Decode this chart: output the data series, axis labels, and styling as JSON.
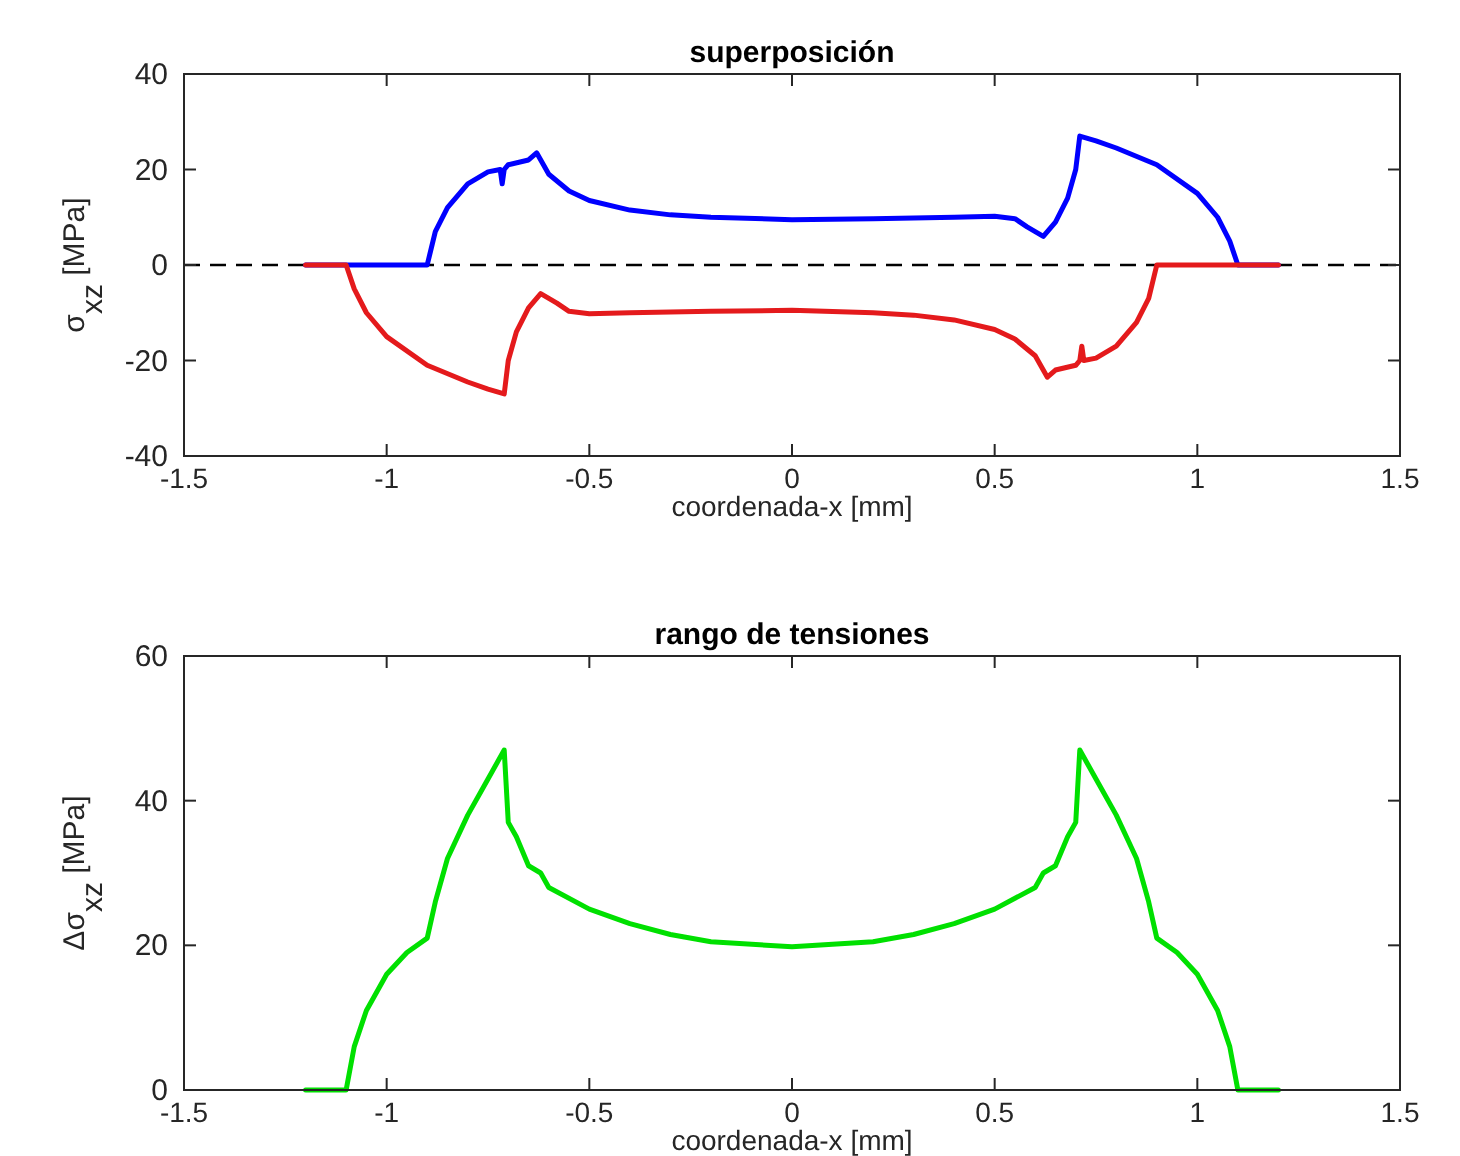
{
  "chart_data": [
    {
      "type": "line",
      "title": "superposición",
      "xlabel": "coordenada-x [mm]",
      "ylabel": "σ$_{xz}$ [MPa]",
      "xlim": [
        -1.5,
        1.5
      ],
      "xticks": [
        -1.5,
        -1,
        -0.5,
        0,
        0.5,
        1,
        1.5
      ],
      "ylim": [
        -40,
        40
      ],
      "yticks": [
        -40,
        -20,
        0,
        20,
        40
      ],
      "grid": false,
      "ref_lines": [
        {
          "axis": "y",
          "value": 0,
          "color": "#000000",
          "line_style": "dashed"
        }
      ],
      "series": [
        {
          "color": "#0000ff",
          "x": [
            -1.2,
            -1.1,
            -0.9,
            -0.88,
            -0.85,
            -0.8,
            -0.75,
            -0.72,
            -0.715,
            -0.71,
            -0.7,
            -0.65,
            -0.63,
            -0.6,
            -0.55,
            -0.5,
            -0.4,
            -0.3,
            -0.2,
            0,
            0.2,
            0.4,
            0.5,
            0.55,
            0.58,
            0.62,
            0.65,
            0.68,
            0.7,
            0.71,
            0.75,
            0.8,
            0.9,
            1.0,
            1.05,
            1.08,
            1.1,
            1.2
          ],
          "values": [
            0,
            0,
            0,
            7,
            12,
            17,
            19.5,
            20,
            17,
            20,
            21,
            22,
            23.5,
            19,
            15.5,
            13.5,
            11.5,
            10.5,
            10,
            9.5,
            9.7,
            10,
            10.2,
            9.7,
            8,
            6,
            9,
            14,
            20,
            27,
            26,
            24.5,
            21,
            15,
            10,
            5,
            0,
            0
          ]
        },
        {
          "color": "#e41a1c",
          "x": [
            -1.2,
            -1.1,
            -1.08,
            -1.05,
            -1.0,
            -0.9,
            -0.8,
            -0.75,
            -0.71,
            -0.7,
            -0.68,
            -0.65,
            -0.62,
            -0.58,
            -0.55,
            -0.5,
            -0.4,
            -0.2,
            0,
            0.2,
            0.3,
            0.4,
            0.5,
            0.55,
            0.6,
            0.63,
            0.65,
            0.7,
            0.71,
            0.715,
            0.72,
            0.75,
            0.8,
            0.85,
            0.88,
            0.9,
            1.1,
            1.2
          ],
          "values": [
            0,
            0,
            -5,
            -10,
            -15,
            -21,
            -24.5,
            -26,
            -27,
            -20,
            -14,
            -9,
            -6,
            -8,
            -9.7,
            -10.2,
            -10,
            -9.7,
            -9.5,
            -10,
            -10.5,
            -11.5,
            -13.5,
            -15.5,
            -19,
            -23.5,
            -22,
            -21,
            -20,
            -17,
            -20,
            -19.5,
            -17,
            -12,
            -7,
            0,
            0,
            0
          ]
        }
      ]
    },
    {
      "type": "line",
      "title": "rango de tensiones",
      "xlabel": "coordenada-x [mm]",
      "ylabel": "Δσ$_{xz}$ [MPa]",
      "xlim": [
        -1.5,
        1.5
      ],
      "xticks": [
        -1.5,
        -1,
        -0.5,
        0,
        0.5,
        1,
        1.5
      ],
      "ylim": [
        0,
        60
      ],
      "yticks": [
        0,
        20,
        40,
        60
      ],
      "grid": false,
      "series": [
        {
          "color": "#00e000",
          "x": [
            -1.2,
            -1.1,
            -1.08,
            -1.05,
            -1.0,
            -0.95,
            -0.9,
            -0.88,
            -0.85,
            -0.8,
            -0.75,
            -0.71,
            -0.7,
            -0.68,
            -0.65,
            -0.62,
            -0.6,
            -0.5,
            -0.4,
            -0.3,
            -0.2,
            0,
            0.2,
            0.3,
            0.4,
            0.5,
            0.6,
            0.62,
            0.65,
            0.68,
            0.7,
            0.71,
            0.75,
            0.8,
            0.85,
            0.88,
            0.9,
            0.95,
            1.0,
            1.05,
            1.08,
            1.1,
            1.2
          ],
          "values": [
            0,
            0,
            6,
            11,
            16,
            19,
            21,
            26,
            32,
            38,
            43,
            47,
            37,
            35,
            31,
            30,
            28,
            25,
            23,
            21.5,
            20.5,
            19.8,
            20.5,
            21.5,
            23,
            25,
            28,
            30,
            31,
            35,
            37,
            47,
            43,
            38,
            32,
            26,
            21,
            19,
            16,
            11,
            6,
            0,
            0
          ]
        }
      ]
    }
  ]
}
